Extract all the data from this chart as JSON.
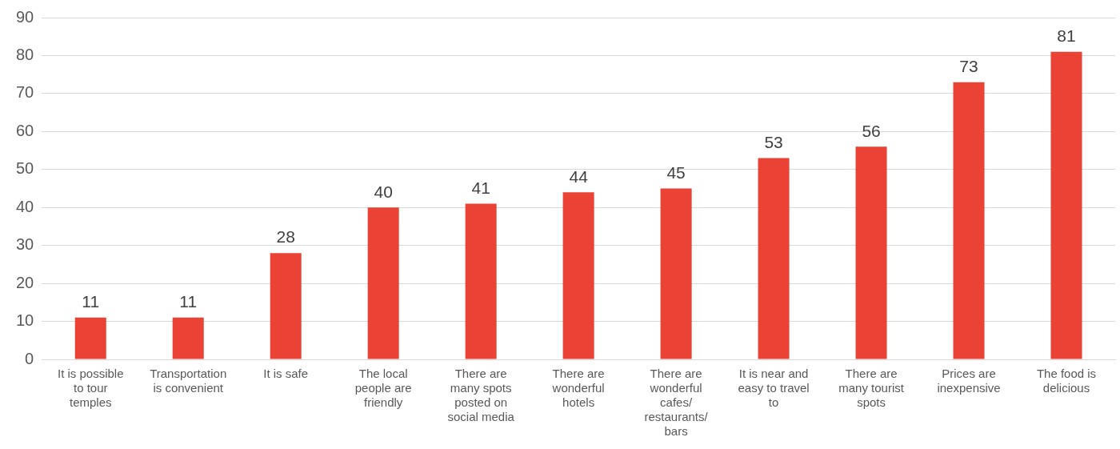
{
  "chart_data": {
    "type": "bar",
    "categories": [
      "It is possible to tour temples",
      "Transportation is convenient",
      "It is safe",
      "The local people are friendly",
      "There are many spots posted on social media",
      "There are wonderful hotels",
      "There are wonderful cafes/ restaurants/ bars",
      "It is near and easy to travel to",
      "There are many tourist spots",
      "Prices are inexpensive",
      "The food is delicious"
    ],
    "values": [
      11,
      11,
      28,
      40,
      41,
      44,
      45,
      53,
      56,
      73,
      81
    ],
    "color": "#ea4335",
    "ylim": [
      0,
      90
    ],
    "yticks": [
      0,
      10,
      20,
      30,
      40,
      50,
      60,
      70,
      80,
      90
    ],
    "grid": "y",
    "legend": false,
    "data_labels": true
  }
}
